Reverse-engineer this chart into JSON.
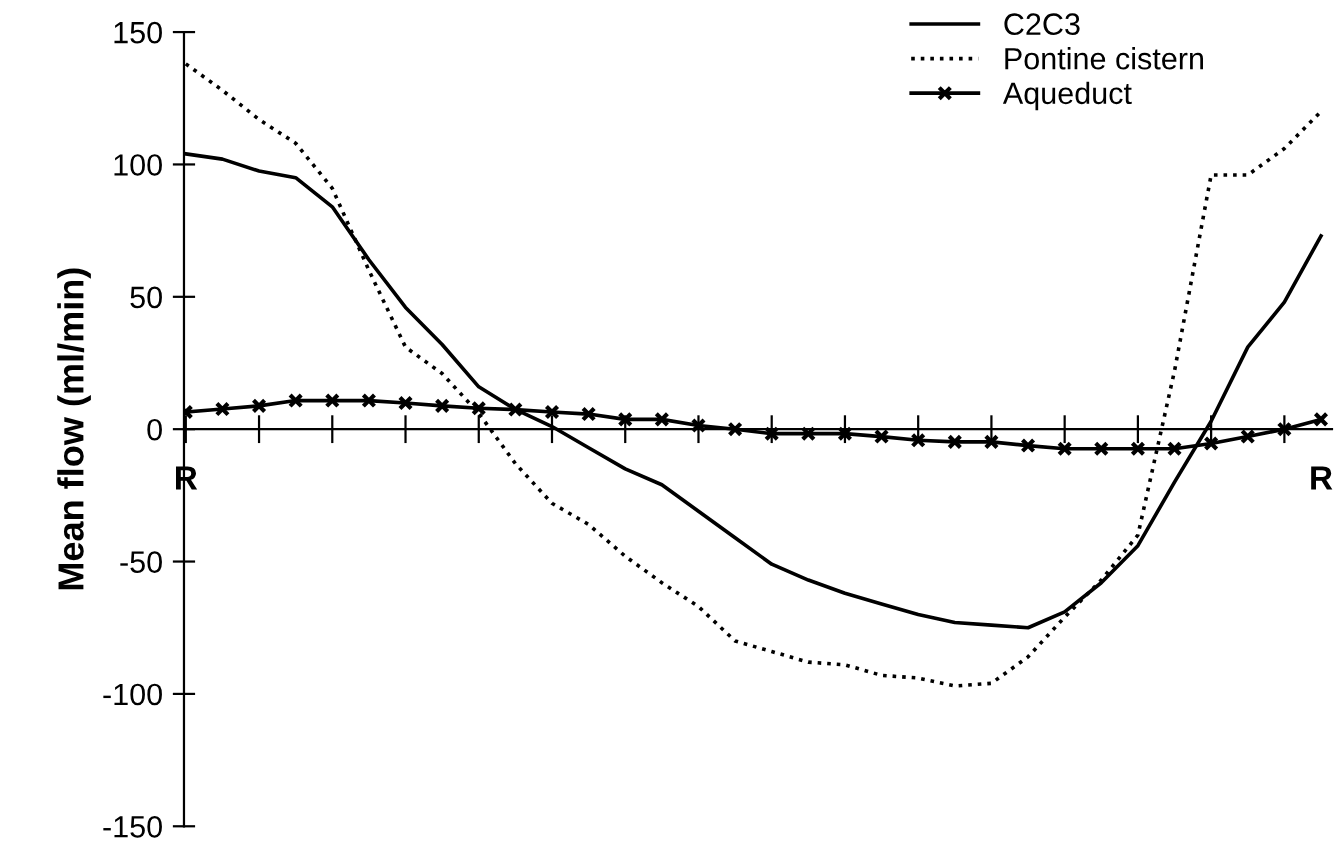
{
  "chart_data": {
    "type": "line",
    "ylabel": "Mean flow (ml/min)",
    "categories": [
      "R",
      null,
      null,
      null,
      null,
      null,
      null,
      null,
      null,
      null,
      null,
      null,
      null,
      null,
      null,
      null,
      null,
      null,
      null,
      null,
      null,
      null,
      null,
      null,
      null,
      null,
      null,
      null,
      null,
      null,
      null,
      "R"
    ],
    "ylim": [
      -150,
      150
    ],
    "yticks": [
      -150,
      -100,
      -50,
      0,
      50,
      100,
      150
    ],
    "grid": false,
    "legend": "top right",
    "series": [
      {
        "name": "C2C3",
        "color": "#000000",
        "line_style": "solid",
        "marker": "none",
        "values": [
          104,
          102,
          97.5,
          95,
          84,
          64,
          46,
          32,
          16,
          7.5,
          1,
          -7,
          -15,
          -21,
          -31,
          -41,
          -51,
          -57,
          -62,
          -66,
          -70,
          -73,
          -74,
          -75,
          -69,
          -58,
          -44,
          -20,
          3,
          31,
          48,
          73
        ]
      },
      {
        "name": "Pontine cistern",
        "color": "#000000",
        "line_style": "dotted",
        "marker": "none",
        "values": [
          138,
          128,
          117,
          108,
          91,
          60,
          31,
          21,
          6,
          -13,
          -28,
          -36,
          -48,
          -58,
          -67,
          -80,
          -84,
          -88,
          -89,
          -93,
          -94,
          -97,
          -96,
          -86,
          -71,
          -57,
          -40,
          22,
          96,
          96,
          106,
          120
        ]
      },
      {
        "name": "Aqueduct",
        "color": "#000000",
        "line_style": "solid",
        "marker": "cross",
        "values": [
          6.5,
          7.6,
          8.8,
          10.8,
          10.8,
          10.8,
          9.9,
          8.8,
          7.9,
          7.4,
          6.5,
          5.7,
          3.7,
          3.7,
          1.4,
          0,
          -1.7,
          -1.7,
          -1.7,
          -2.8,
          -4.2,
          -4.8,
          -4.8,
          -6.2,
          -7.4,
          -7.4,
          -7.4,
          -7.4,
          -5.4,
          -2.8,
          0,
          3.7
        ]
      }
    ]
  }
}
